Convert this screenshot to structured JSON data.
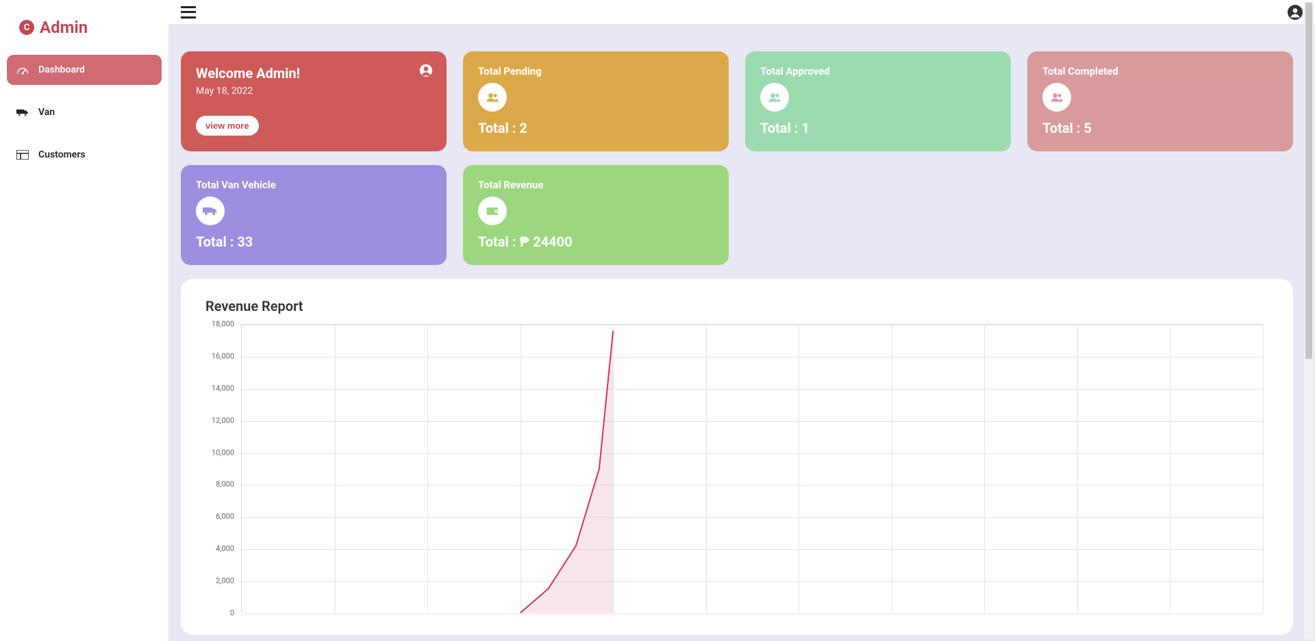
{
  "brand": {
    "name": "Admin",
    "icon_letter": "C",
    "brand_color": "#c14953"
  },
  "sidebar": {
    "items": [
      {
        "label": "Dashboard",
        "icon": "dashboard",
        "active": true
      },
      {
        "label": "Van",
        "icon": "van",
        "active": false
      },
      {
        "label": "Customers",
        "icon": "table",
        "active": false
      }
    ]
  },
  "welcome_card": {
    "title": "Welcome Admin!",
    "date": "May 18, 2022",
    "button_label": "view more",
    "bg": "#cf5a5a"
  },
  "stat_cards_row1": [
    {
      "key": "pending",
      "title": "Total Pending",
      "total_label": "Total : 2",
      "icon": "users",
      "bg": "#dba949",
      "icon_color": "#dba949"
    },
    {
      "key": "approved",
      "title": "Total Approved",
      "total_label": "Total : 1",
      "icon": "users",
      "bg": "#9cdbb0",
      "icon_color": "#9cdbb0"
    },
    {
      "key": "completed",
      "title": "Total Completed",
      "total_label": "Total : 5",
      "icon": "users",
      "bg": "#d89a9a",
      "icon_color": "#d89a9a"
    }
  ],
  "stat_cards_row2": [
    {
      "key": "van",
      "title": "Total Van Vehicle",
      "total_label": "Total : 33",
      "icon": "van",
      "bg": "#9d8ee0",
      "icon_color": "#9d8ee0"
    },
    {
      "key": "revenue",
      "title": "Total Revenue",
      "total_label": "Total : ₱ 24400",
      "icon": "wallet",
      "bg": "#9cd77f",
      "icon_color": "#9cd77f"
    }
  ],
  "chart": {
    "title": "Revenue Report",
    "type": "area",
    "line_color": "#d0336c",
    "fill_color": "rgba(208,51,108,0.12)",
    "line_width": 2,
    "background_color": "#ffffff",
    "grid_color": "#e5e5ea",
    "ylim": [
      0,
      18000
    ],
    "ytick_step": 2000,
    "yticks": [
      18000,
      16000,
      14000,
      12000,
      10000,
      8000,
      6000,
      4000,
      2000,
      0
    ],
    "ytick_labels": [
      "18,000",
      "16,000",
      "14,000",
      "12,000",
      "10,000",
      "8,000",
      "6,000",
      "4,000",
      "2,000",
      "0"
    ],
    "x_count": 12,
    "data_points": [
      {
        "x_index": 3,
        "y": 0
      },
      {
        "x_index": 3.3,
        "y": 1500
      },
      {
        "x_index": 3.6,
        "y": 4200
      },
      {
        "x_index": 3.85,
        "y": 9000
      },
      {
        "x_index": 4,
        "y": 17600
      }
    ]
  },
  "scrollbar": {
    "thumb_top": 2,
    "thumb_height": 520
  },
  "colors": {
    "content_bg": "#e8e8f5"
  }
}
